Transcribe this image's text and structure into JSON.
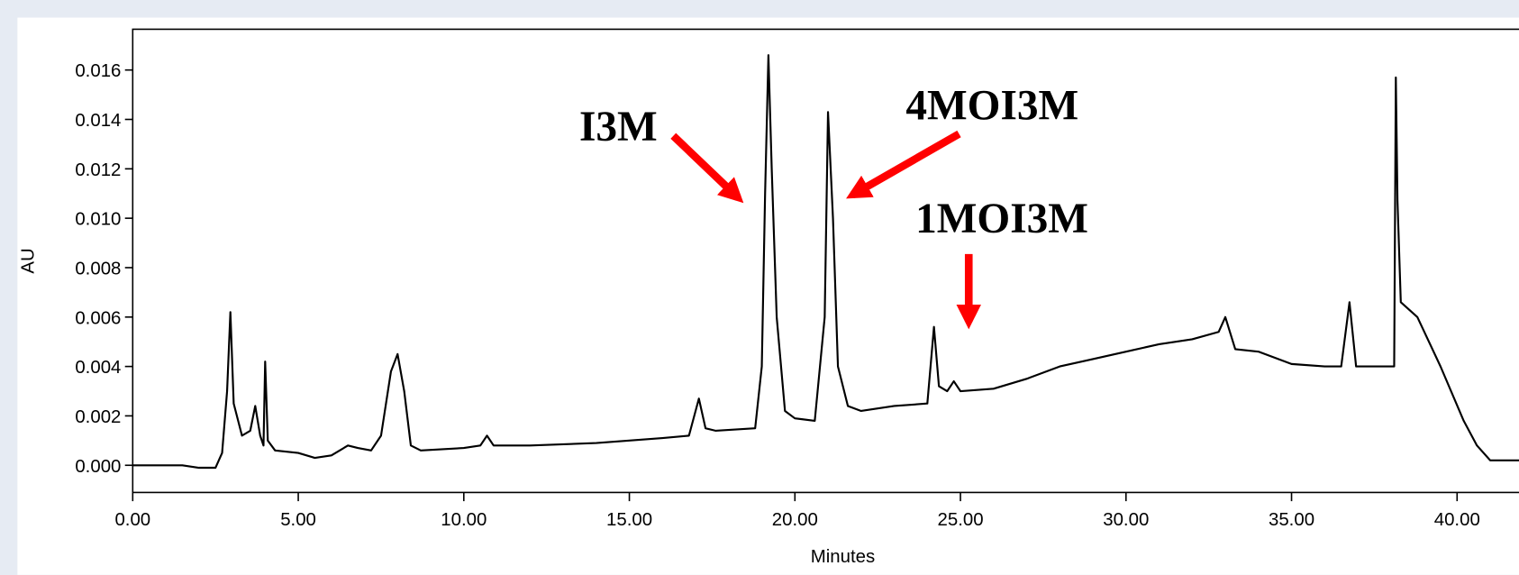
{
  "chart_data": {
    "type": "line",
    "x_label": "Minutes",
    "y_label": "AU",
    "xlim": [
      0,
      41.87
    ],
    "ylim": [
      -0.0011,
      0.01765
    ],
    "xticks": [
      {
        "value": 0,
        "label": "0.00"
      },
      {
        "value": 5,
        "label": "5.00"
      },
      {
        "value": 10,
        "label": "10.00"
      },
      {
        "value": 15,
        "label": "15.00"
      },
      {
        "value": 20,
        "label": "20.00"
      },
      {
        "value": 25,
        "label": "25.00"
      },
      {
        "value": 30,
        "label": "30.00"
      },
      {
        "value": 35,
        "label": "35.00"
      },
      {
        "value": 40,
        "label": "40.00"
      }
    ],
    "yticks": [
      {
        "value": 0,
        "label": "0.000"
      },
      {
        "value": 0.002,
        "label": "0.002"
      },
      {
        "value": 0.004,
        "label": "0.004"
      },
      {
        "value": 0.006,
        "label": "0.006"
      },
      {
        "value": 0.008,
        "label": "0.008"
      },
      {
        "value": 0.01,
        "label": "0.010"
      },
      {
        "value": 0.012,
        "label": "0.012"
      },
      {
        "value": 0.014,
        "label": "0.014"
      },
      {
        "value": 0.016,
        "label": "0.016"
      }
    ],
    "annotations": [
      "I3M",
      "4MOI3M",
      "1MOI3M"
    ],
    "x": [
      0,
      1.5,
      2.0,
      2.5,
      2.7,
      2.85,
      2.95,
      3.05,
      3.3,
      3.55,
      3.7,
      3.85,
      3.95,
      4.0,
      4.08,
      4.3,
      5.0,
      5.5,
      6.0,
      6.5,
      6.8,
      7.2,
      7.5,
      7.8,
      8.0,
      8.2,
      8.4,
      8.7,
      10,
      10.5,
      10.7,
      10.9,
      12,
      14,
      16,
      16.8,
      17.1,
      17.3,
      17.6,
      18.8,
      19.0,
      19.1,
      19.2,
      19.3,
      19.45,
      19.7,
      20.0,
      20.6,
      20.9,
      21.0,
      21.15,
      21.3,
      21.6,
      22,
      23,
      24.0,
      24.2,
      24.35,
      24.6,
      24.8,
      25.0,
      26,
      27,
      28,
      29,
      30,
      31,
      32,
      32.8,
      33.0,
      33.3,
      34,
      35,
      36,
      36.5,
      36.75,
      36.95,
      37.5,
      38.1,
      38.15,
      38.2,
      38.3,
      38.8,
      39.5,
      40.2,
      40.6,
      41.0,
      41.87
    ],
    "series": [
      {
        "color": "#000000",
        "values": [
          0,
          0,
          -0.0001,
          -0.0001,
          0.0005,
          0.003,
          0.0062,
          0.0025,
          0.0012,
          0.0014,
          0.0024,
          0.0012,
          0.0008,
          0.0042,
          0.001,
          0.0006,
          0.0005,
          0.0003,
          0.0004,
          0.0008,
          0.0007,
          0.0006,
          0.0012,
          0.0038,
          0.0045,
          0.003,
          0.0008,
          0.0006,
          0.0007,
          0.0008,
          0.0012,
          0.0008,
          0.0008,
          0.0009,
          0.0011,
          0.0012,
          0.0027,
          0.0015,
          0.0014,
          0.0015,
          0.004,
          0.011,
          0.0166,
          0.012,
          0.006,
          0.0022,
          0.0019,
          0.0018,
          0.006,
          0.0143,
          0.01,
          0.004,
          0.0024,
          0.0022,
          0.0024,
          0.0025,
          0.0056,
          0.0032,
          0.003,
          0.0034,
          0.003,
          0.0031,
          0.0035,
          0.004,
          0.0043,
          0.0046,
          0.0049,
          0.0051,
          0.0054,
          0.006,
          0.0047,
          0.0046,
          0.0041,
          0.004,
          0.004,
          0.0066,
          0.004,
          0.004,
          0.004,
          0.0157,
          0.0107,
          0.0066,
          0.006,
          0.004,
          0.0018,
          0.0008,
          0.0002,
          0.0002
        ]
      }
    ]
  }
}
